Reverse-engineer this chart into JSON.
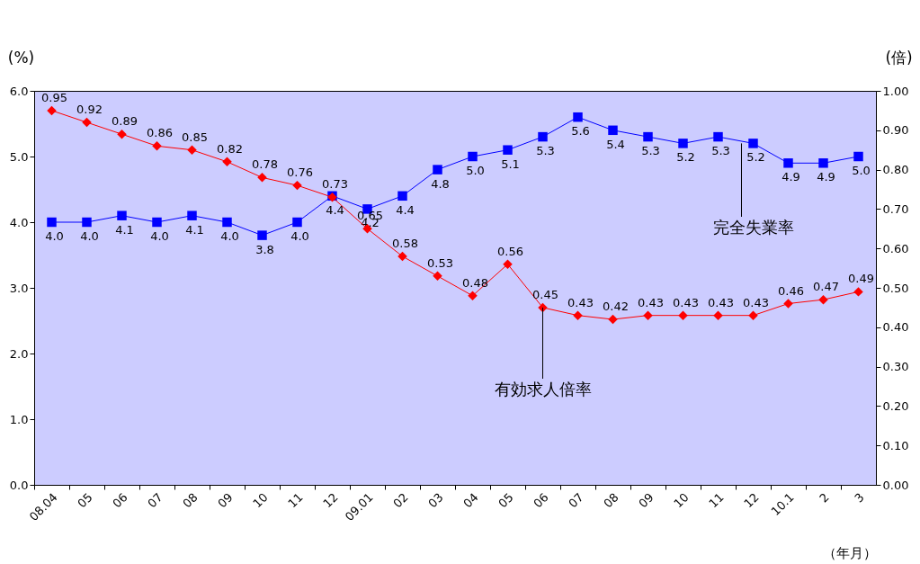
{
  "chart_data": {
    "type": "line",
    "xlabel": "（年月）",
    "ylabel": "(%)",
    "y2label": "(倍)",
    "categories": [
      "08.04",
      "05",
      "06",
      "07",
      "08",
      "09",
      "10",
      "11",
      "12",
      "09.01",
      "02",
      "03",
      "04",
      "05",
      "06",
      "07",
      "08",
      "09",
      "10",
      "11",
      "12",
      "10.1",
      "2",
      "3"
    ],
    "series": [
      {
        "name": "完全失業率",
        "color": "#0000ff",
        "marker": "square",
        "values": [
          4.0,
          4.0,
          4.1,
          4.0,
          4.1,
          4.0,
          3.8,
          4.0,
          4.4,
          4.2,
          4.4,
          4.8,
          5.0,
          5.1,
          5.3,
          5.6,
          5.4,
          5.3,
          5.2,
          5.3,
          5.2,
          4.9,
          4.9,
          5.0
        ],
        "value_labels": [
          "4.0",
          "4.0",
          "4.1",
          "4.0",
          "4.1",
          "4.0",
          "3.8",
          "4.0",
          "4.4",
          "4.2",
          "4.4",
          "4.8",
          "5.0",
          "5.1",
          "5.3",
          "5.6",
          "5.4",
          "5.3",
          "5.2",
          "5.3",
          "5.2",
          "4.9",
          "4.9",
          "5.0"
        ]
      },
      {
        "name": "有効求人倍率",
        "color": "#ff0000",
        "marker": "diamond",
        "axis": "y2",
        "values": [
          0.95,
          0.92,
          0.89,
          0.86,
          0.85,
          0.82,
          0.78,
          0.76,
          0.73,
          0.65,
          0.58,
          0.53,
          0.48,
          0.56,
          0.45,
          0.43,
          0.42,
          0.43,
          0.43,
          0.43,
          0.43,
          0.46,
          0.47,
          0.49
        ],
        "value_labels": [
          "0.95",
          "0.92",
          "0.89",
          "0.86",
          "0.85",
          "0.82",
          "0.78",
          "0.76",
          "0.73",
          "0.65",
          "0.58",
          "0.53",
          "0.48",
          "0.56",
          "0.45",
          "0.43",
          "0.42",
          "0.43",
          "0.43",
          "0.43",
          "0.43",
          "0.46",
          "0.47",
          "0.49"
        ]
      }
    ],
    "ylim": [
      0,
      6
    ],
    "yticks": [
      {
        "value": 0,
        "label": "0.0"
      },
      {
        "value": 1,
        "label": "1.0"
      },
      {
        "value": 2,
        "label": "2.0"
      },
      {
        "value": 3,
        "label": "3.0"
      },
      {
        "value": 4,
        "label": "4.0"
      },
      {
        "value": 5,
        "label": "5.0"
      },
      {
        "value": 6,
        "label": "6.0"
      }
    ],
    "y2lim": [
      0,
      1
    ],
    "y2ticks": [
      {
        "value": 0,
        "label": "0.00"
      },
      {
        "value": 0.1,
        "label": "0.10"
      },
      {
        "value": 0.2,
        "label": "0.20"
      },
      {
        "value": 0.3,
        "label": "0.30"
      },
      {
        "value": 0.4,
        "label": "0.40"
      },
      {
        "value": 0.5,
        "label": "0.50"
      },
      {
        "value": 0.6,
        "label": "0.60"
      },
      {
        "value": 0.7,
        "label": "0.70"
      },
      {
        "value": 0.8,
        "label": "0.80"
      },
      {
        "value": 0.9,
        "label": "0.90"
      },
      {
        "value": 1,
        "label": "1.00"
      }
    ],
    "grid": false,
    "legend": false,
    "line_style": "solid"
  }
}
